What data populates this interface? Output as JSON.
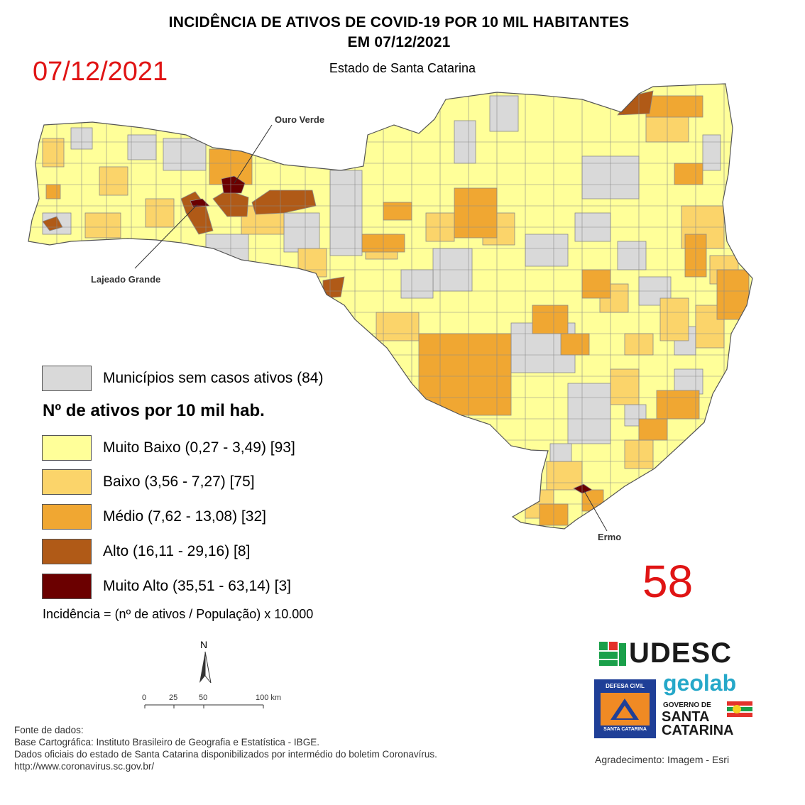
{
  "title_line1": "INCIDÊNCIA DE ATIVOS DE COVID-19 POR 10 MIL HABITANTES",
  "title_line2": "EM 07/12/2021",
  "subtitle": "Estado de Santa Catarina",
  "date_red": "07/12/2021",
  "bulletin_number": "58",
  "callouts": {
    "ouro_verde": "Ouro Verde",
    "lajeado_grande": "Lajeado Grande",
    "ermo": "Ermo"
  },
  "legend": {
    "no_cases": {
      "label": "Municípios sem casos ativos (84)",
      "color": "#d9d9d9"
    },
    "title": "Nº de ativos por 10 mil hab.",
    "classes": [
      {
        "label": "Muito Baixo (0,27 - 3,49) [93]",
        "color": "#ffff99"
      },
      {
        "label": "Baixo (3,56 - 7,27) [75]",
        "color": "#fbd46a"
      },
      {
        "label": "Médio (7,62 - 13,08) [32]",
        "color": "#f0a732"
      },
      {
        "label": "Alto (16,11 - 29,16) [8]",
        "color": "#b05a17"
      },
      {
        "label": "Muito Alto (35,51 - 63,14) [3]",
        "color": "#6b0000"
      }
    ],
    "formula": "Incidência = (nº de ativos / População) x 10.000"
  },
  "north_label": "N",
  "scale_bar": {
    "ticks": [
      "0",
      "25",
      "50",
      "100 km"
    ]
  },
  "sources": {
    "line1": "Fonte de dados:",
    "line2": "Base Cartográfica: Instituto Brasileiro de Geografia e Estatística - IBGE.",
    "line3": "Dados oficiais do estado de Santa Catarina disponibilizados por intermédio do boletim Coronavírus.",
    "line4": "http://www.coronavirus.sc.gov.br/"
  },
  "acknowledgement": "Agradecimento: Imagem - Esri",
  "logos": {
    "udesc": "UDESC",
    "geolab": "geolab",
    "defesa_civil_top": "DEFESA CIVIL",
    "defesa_civil_bottom": "SANTA CATARINA",
    "gov_line1": "GOVERNO DE",
    "gov_line2": "SANTA",
    "gov_line3": "CATARINA"
  }
}
